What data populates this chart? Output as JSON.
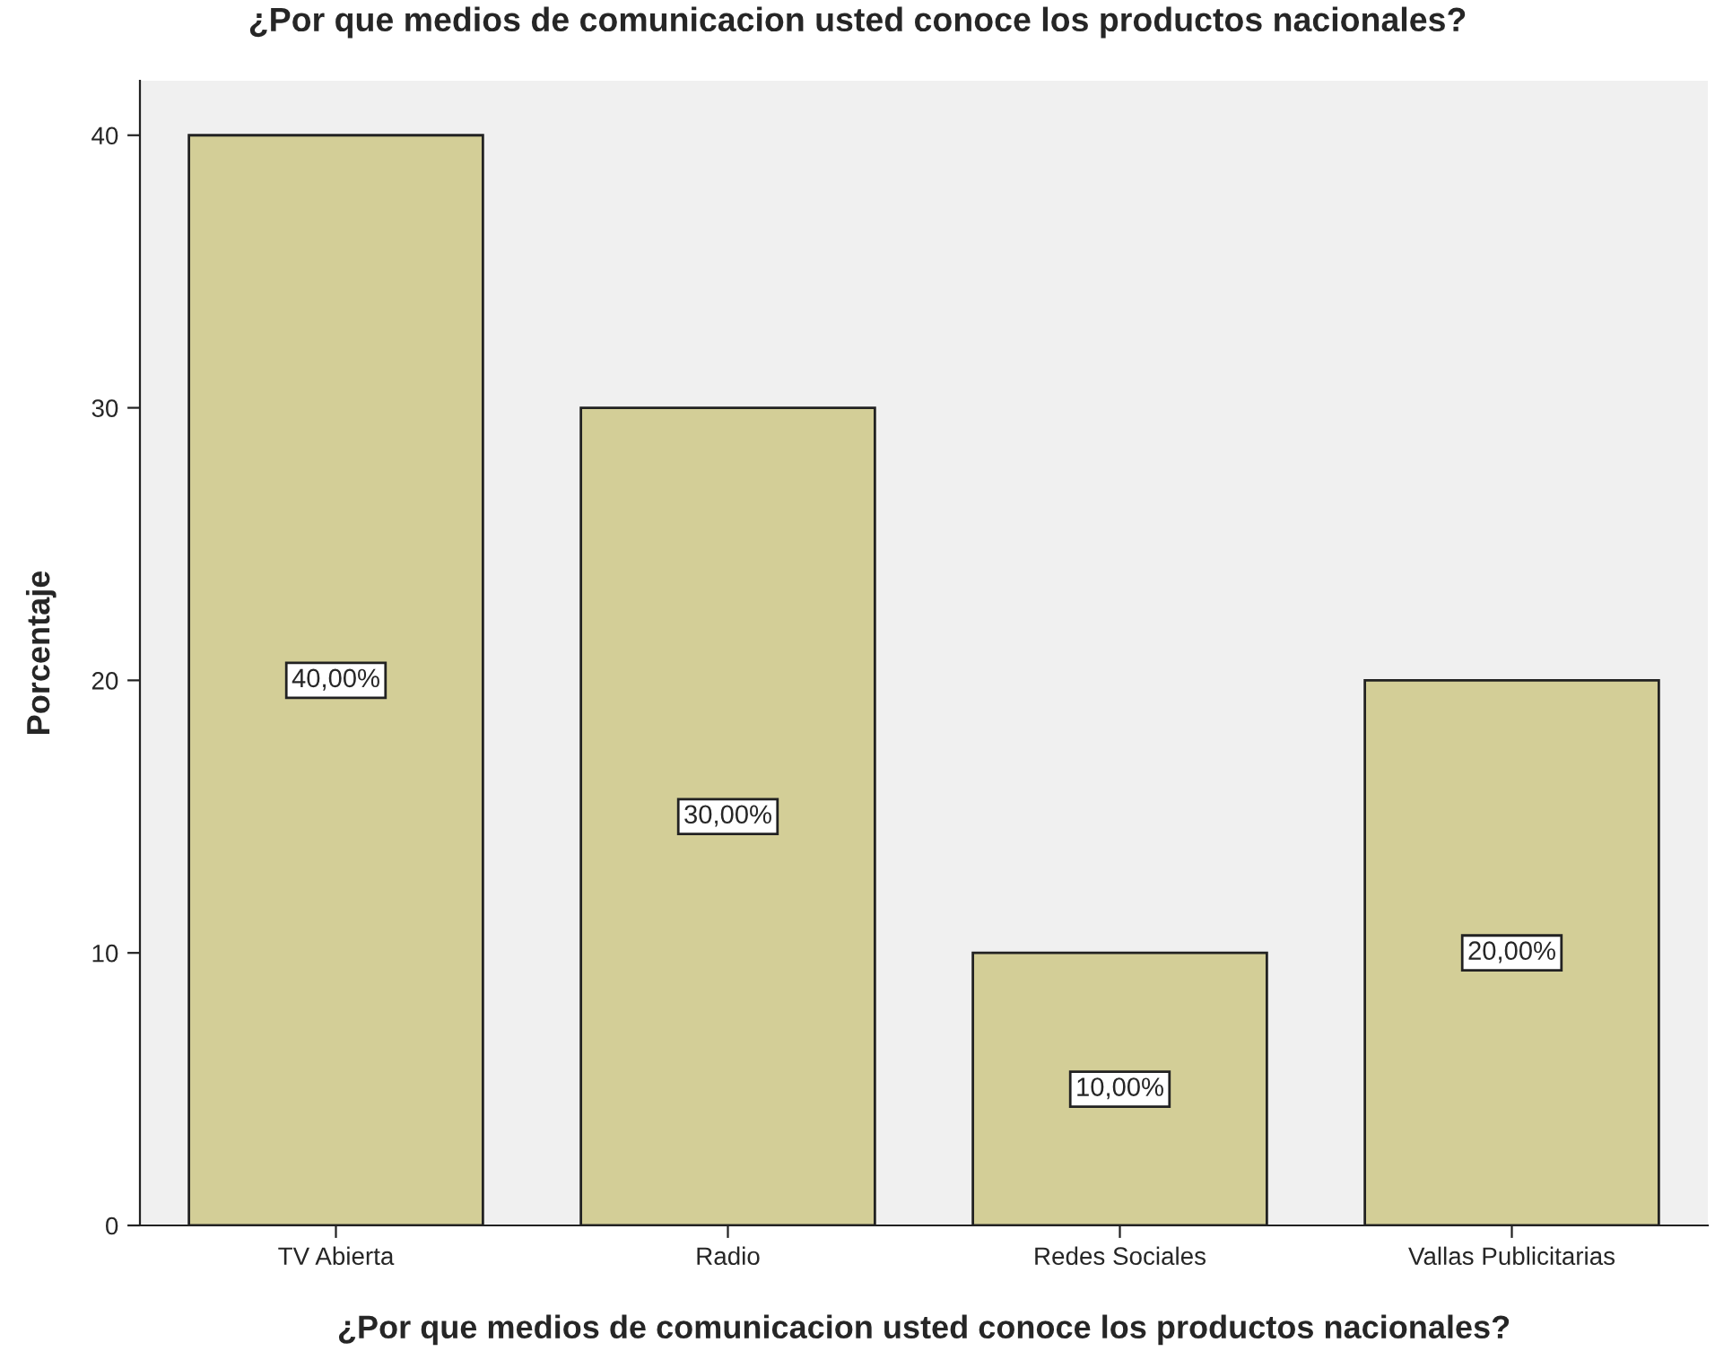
{
  "chart_data": {
    "type": "bar",
    "title": "¿Por que medios de comunicacion usted conoce los productos nacionales?",
    "xlabel": "¿Por que medios de comunicacion usted conoce los productos nacionales?",
    "ylabel": "Porcentaje",
    "categories": [
      "TV Abierta",
      "Radio",
      "Redes Sociales",
      "Vallas Publicitarias"
    ],
    "values": [
      40,
      30,
      10,
      20
    ],
    "value_labels": [
      "40,00%",
      "30,00%",
      "10,00%",
      "20,00%"
    ],
    "color": "#d3ce97",
    "ylim": [
      0,
      42
    ],
    "yticks": [
      0,
      10,
      20,
      30,
      40
    ],
    "grid": false,
    "legend": false
  }
}
